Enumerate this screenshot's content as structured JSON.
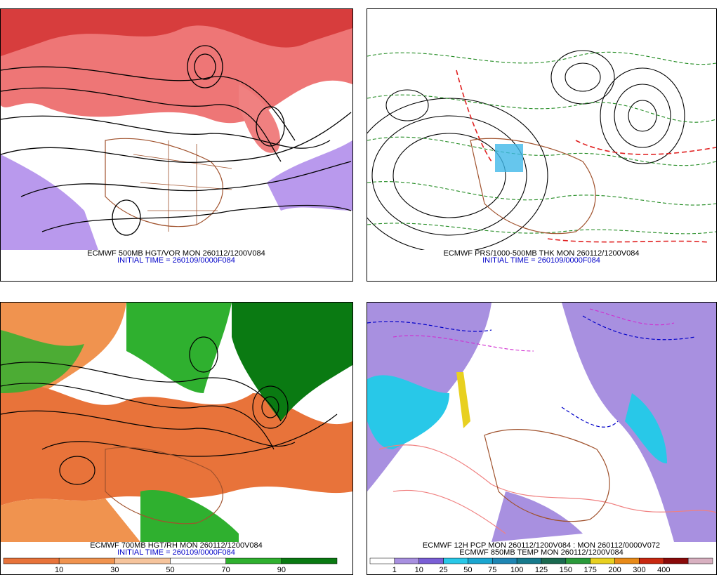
{
  "panels": [
    {
      "captions": [
        {
          "text": "ECMWF 500MB HGT/VOR MON 260112/1200V084",
          "color": "#000000"
        },
        {
          "text": "INITIAL TIME = 260109/0000F084",
          "color": "#0000c8"
        }
      ]
    },
    {
      "captions": [
        {
          "text": "ECMWF PRS/1000-500MB THK MON 260112/1200V084",
          "color": "#000000"
        },
        {
          "text": "INITIAL TIME = 260109/0000F084",
          "color": "#0000c8"
        }
      ]
    },
    {
      "captions": [
        {
          "text": "ECMWF 700MB HGT/RH MON 260112/1200V084",
          "color": "#000000"
        },
        {
          "text": "INITIAL TIME = 260109/0000F084",
          "color": "#0000c8"
        }
      ],
      "colorbar": {
        "colors": [
          "#e8733a",
          "#f0934f",
          "#f6c49c",
          "#ffffff",
          "#2fb02f",
          "#0a7a12"
        ],
        "labels": [
          10,
          30,
          50,
          70,
          90
        ]
      }
    },
    {
      "captions": [
        {
          "text": "ECMWF 12H PCP MON 260112/1200V084 : MON 260112/0000V072",
          "color": "#000000"
        },
        {
          "text": "ECMWF 850MB TEMP MON 260112/1200V084",
          "color": "#000000"
        }
      ],
      "colorbar": {
        "colors": [
          "#ffffff",
          "#a890e0",
          "#7a5fd6",
          "#28c8e8",
          "#1aa6d0",
          "#1e86b4",
          "#167a8c",
          "#1a6a50",
          "#2a9a3a",
          "#e8d020",
          "#e88a18",
          "#c82810",
          "#8a0a0a",
          "#d8b0c0"
        ],
        "labels": [
          1,
          10,
          25,
          50,
          75,
          100,
          125,
          150,
          175,
          200,
          300,
          400
        ]
      }
    }
  ]
}
